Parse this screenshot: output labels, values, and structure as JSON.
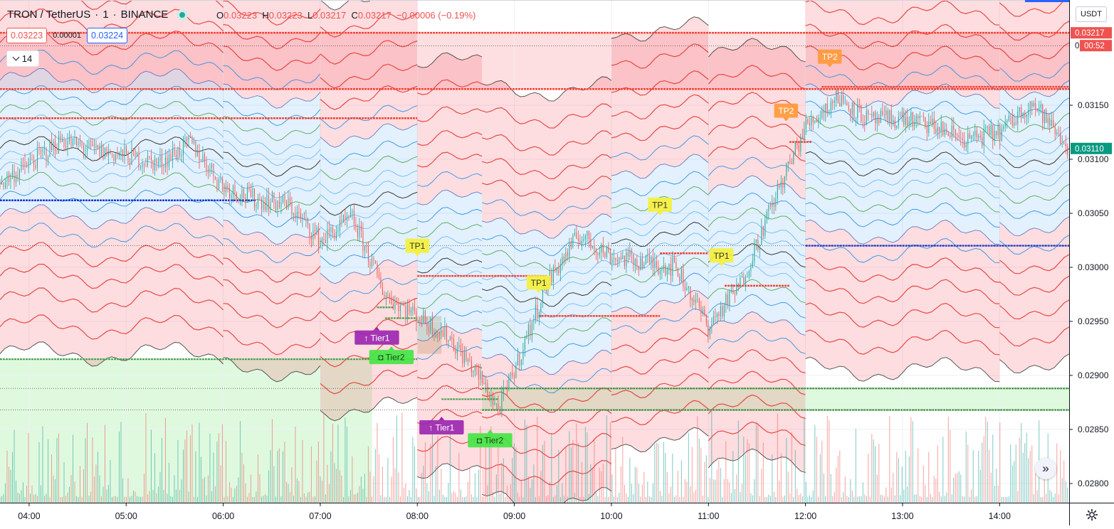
{
  "header": {
    "symbol": "TRON / TetherUS",
    "separator1": "·",
    "interval": "1",
    "separator2": "·",
    "exchange": "BINANCE",
    "o_label": "O",
    "o_value": "0.03223",
    "h_label": "H",
    "h_value": "0.03223",
    "l_label": "L",
    "l_value": "0.03217",
    "c_label": "C",
    "c_value": "0.03217",
    "change": "−0.00006 (−0.19%)"
  },
  "trade": {
    "sell_price": "0.03223",
    "spread": "0.00001",
    "buy_price": "0.03224"
  },
  "indicator_toggle": "14",
  "currency_button": "USDT",
  "last_price": "0.03217",
  "countdown": "00:52",
  "price_tag2": "0.03110",
  "colors": {
    "up": "#26a69a",
    "down": "#ef5350",
    "bull_band": "#2196f3",
    "bear_band": "#f23645",
    "support": "#4caf50",
    "resistance": "#f44336",
    "tp1": "#f5f03b",
    "tp2": "#ff9a3c",
    "tier1": "#9c27b0",
    "tier2": "#44e544"
  },
  "chart_data": {
    "type": "line",
    "title": "",
    "y_axis": {
      "ticks": [
        "0.03150",
        "0.03100",
        "0.03050",
        "0.03000",
        "0.02950",
        "0.02900",
        "0.02850",
        "0.02800"
      ],
      "range": [
        0.02772,
        0.03245
      ]
    },
    "x_axis": {
      "ticks": [
        "04:00",
        "05:00",
        "06:00",
        "07:00",
        "08:00",
        "09:00",
        "10:00",
        "11:00",
        "12:00",
        "13:00",
        "14:00"
      ],
      "range": [
        "03:42",
        "14:43"
      ]
    },
    "series": [
      {
        "type": "line",
        "points": [
          [
            "03:42",
            0.03078
          ],
          [
            "04:00",
            0.03095
          ],
          [
            "04:20",
            0.03118
          ],
          [
            "04:40",
            0.03108
          ],
          [
            "05:00",
            0.03103
          ],
          [
            "05:20",
            0.03096
          ],
          [
            "05:40",
            0.03115
          ],
          [
            "06:00",
            0.03075
          ],
          [
            "06:20",
            0.03063
          ],
          [
            "06:40",
            0.03058
          ],
          [
            "07:00",
            0.03025
          ],
          [
            "07:20",
            0.03045
          ],
          [
            "07:40",
            0.02975
          ],
          [
            "08:00",
            0.02955
          ],
          [
            "08:20",
            0.02935
          ],
          [
            "08:40",
            0.02895
          ],
          [
            "08:50",
            0.02868
          ],
          [
            "09:00",
            0.02905
          ],
          [
            "09:20",
            0.02985
          ],
          [
            "09:40",
            0.0303
          ],
          [
            "10:00",
            0.0301
          ],
          [
            "10:20",
            0.03005
          ],
          [
            "10:40",
            0.03
          ],
          [
            "11:00",
            0.02945
          ],
          [
            "11:20",
            0.02985
          ],
          [
            "11:40",
            0.0306
          ],
          [
            "12:00",
            0.0313
          ],
          [
            "12:20",
            0.03158
          ],
          [
            "12:40",
            0.03135
          ],
          [
            "13:00",
            0.03138
          ],
          [
            "13:20",
            0.0313
          ],
          [
            "13:40",
            0.03118
          ],
          [
            "14:00",
            0.03125
          ],
          [
            "14:20",
            0.03153
          ],
          [
            "14:43",
            0.0311
          ]
        ]
      },
      {
        "type": "bands",
        "segments": [
          {
            "start": "03:42",
            "end": "06:00",
            "center": 0.0311,
            "bias": "bull"
          },
          {
            "start": "06:00",
            "end": "07:00",
            "center": 0.03096,
            "bias": "bull"
          },
          {
            "start": "07:00",
            "end": "08:00",
            "center": 0.0306,
            "bias": "bull"
          },
          {
            "start": "08:00",
            "end": "08:40",
            "center": 0.02998,
            "bias": "bear"
          },
          {
            "start": "08:40",
            "end": "10:00",
            "center": 0.02975,
            "bias": "bear"
          },
          {
            "start": "10:00",
            "end": "11:00",
            "center": 0.0303,
            "bias": "bull"
          },
          {
            "start": "11:00",
            "end": "12:00",
            "center": 0.0301,
            "bias": "bear"
          },
          {
            "start": "12:00",
            "end": "14:00",
            "center": 0.03095,
            "bias": "bull"
          },
          {
            "start": "14:00",
            "end": "14:43",
            "center": 0.03103,
            "bias": "bull"
          }
        ]
      },
      {
        "type": "levels",
        "resistance": [
          {
            "price": 0.03217,
            "start": "03:42",
            "end": "14:43"
          },
          {
            "price": 0.03165,
            "start": "03:42",
            "end": "14:43"
          },
          {
            "price": 0.03138,
            "start": "03:42",
            "end": "08:00"
          },
          {
            "price": 0.03167,
            "start": "12:10",
            "end": "14:43"
          },
          {
            "price": 0.03116,
            "start": "11:50",
            "end": "12:04"
          },
          {
            "price": 0.03013,
            "start": "10:30",
            "end": "11:00"
          },
          {
            "price": 0.02992,
            "start": "08:00",
            "end": "09:20"
          },
          {
            "price": 0.02955,
            "start": "09:15",
            "end": "10:30"
          },
          {
            "price": 0.02983,
            "start": "11:10",
            "end": "11:50"
          }
        ],
        "support": [
          {
            "price": 0.02915,
            "start": "03:42",
            "end": "08:00"
          },
          {
            "price": 0.02888,
            "start": "08:40",
            "end": "14:43"
          },
          {
            "price": 0.02868,
            "start": "08:40",
            "end": "14:43"
          },
          {
            "price": 0.02963,
            "start": "07:35",
            "end": "07:45"
          },
          {
            "price": 0.02953,
            "start": "07:40",
            "end": "08:00"
          },
          {
            "price": 0.02878,
            "start": "08:15",
            "end": "08:50"
          }
        ],
        "blue": [
          {
            "price": 0.03062,
            "start": "03:42",
            "end": "06:20"
          },
          {
            "price": 0.0302,
            "start": "12:00",
            "end": "14:43"
          }
        ],
        "dotted": [
          0.03205,
          0.0302,
          0.02888,
          0.02868
        ]
      },
      {
        "type": "zones",
        "zones": [
          {
            "top": 0.03217,
            "bottom": 0.03165,
            "start": "03:42",
            "end": "14:43",
            "kind": "supply"
          },
          {
            "top": 0.02915,
            "bottom": 0.02772,
            "start": "03:42",
            "end": "07:32",
            "kind": "demand"
          },
          {
            "top": 0.02888,
            "bottom": 0.02868,
            "start": "08:40",
            "end": "14:43",
            "kind": "demand"
          },
          {
            "top": 0.02955,
            "bottom": 0.0292,
            "start": "08:00",
            "end": "08:15",
            "kind": "neutral"
          }
        ]
      }
    ],
    "labels": [
      {
        "text": "TP2",
        "time": "12:15",
        "price": 0.03195,
        "color": "tp2",
        "pointer": "down"
      },
      {
        "text": "TP2",
        "time": "11:48",
        "price": 0.03145,
        "color": "tp2",
        "pointer": "down"
      },
      {
        "text": "TP1",
        "time": "10:30",
        "price": 0.03058,
        "color": "tp1",
        "pointer": "down"
      },
      {
        "text": "TP1",
        "time": "11:08",
        "price": 0.03011,
        "color": "tp1",
        "pointer": "down"
      },
      {
        "text": "TP1",
        "time": "08:00",
        "price": 0.0302,
        "color": "tp1",
        "pointer": "down"
      },
      {
        "text": "TP1",
        "time": "09:15",
        "price": 0.02986,
        "color": "tp1",
        "pointer": "down"
      },
      {
        "text": "↑ Tier1",
        "time": "07:35",
        "price": 0.02935,
        "color": "tier1",
        "pointer": "up"
      },
      {
        "text": "◘ Tier2",
        "time": "07:44",
        "price": 0.02917,
        "color": "tier2",
        "pointer": "up"
      },
      {
        "text": "↑ Tier1",
        "time": "08:15",
        "price": 0.02852,
        "color": "tier1",
        "pointer": "up"
      },
      {
        "text": "◘ Tier2",
        "time": "08:45",
        "price": 0.0284,
        "color": "tier2",
        "pointer": "up"
      }
    ],
    "volume": {
      "baseline_price": 0.02772,
      "max_label_hint": "none"
    }
  }
}
